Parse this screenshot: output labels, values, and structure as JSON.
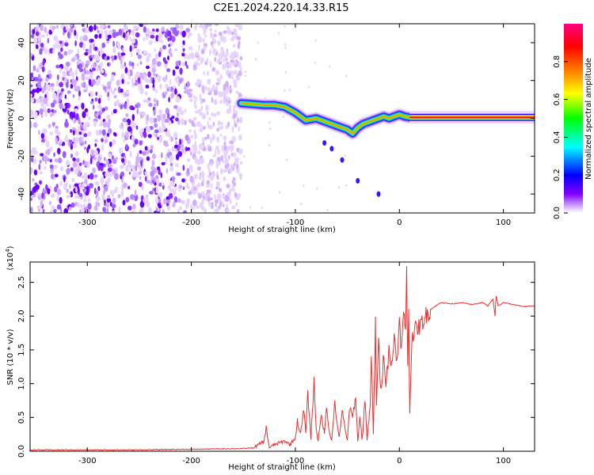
{
  "title": "C2E1.2024.220.14.33.R15",
  "chart_data": [
    {
      "type": "heatmap",
      "xlabel": "Height of straight line (km)",
      "ylabel": "Frequency (Hz)",
      "xlim": [
        -355,
        130
      ],
      "ylim": [
        -50,
        50
      ],
      "xticks": [
        -300,
        -200,
        -100,
        0,
        100
      ],
      "yticks": [
        -40,
        -20,
        0,
        20,
        40
      ],
      "colorbar": {
        "label": "Normalized spectral amplitude",
        "range": [
          0,
          1
        ],
        "ticks": [
          "0.0",
          "0.2",
          "0.4",
          "0.6",
          "0.8"
        ],
        "colors": [
          "#ffffff",
          "#d6b0ff",
          "#7a00ff",
          "#0000ff",
          "#00ffff",
          "#00ff00",
          "#ffff00",
          "#ff8000",
          "#ff0000",
          "#ff0080"
        ]
      },
      "noise_region_x": [
        -355,
        -152
      ],
      "ridge": {
        "x": [
          -152,
          -140,
          -130,
          -120,
          -110,
          -100,
          -90,
          -80,
          -70,
          -60,
          -50,
          -45,
          -40,
          -35,
          -30,
          -25,
          -20,
          -15,
          -10,
          -5,
          0,
          5,
          10,
          130
        ],
        "y": [
          8,
          7.5,
          7,
          7,
          6,
          3,
          -1,
          0,
          -2,
          -4,
          -6,
          -8,
          -5,
          -3,
          -2,
          -1,
          0,
          1,
          0,
          1,
          2,
          1,
          0.5,
          0.5
        ]
      }
    },
    {
      "type": "line",
      "xlabel": "Height of straight line (km)",
      "ylabel": "SNR (10 * v/v)",
      "y_multiplier": "(x10^4)",
      "xlim": [
        -355,
        130
      ],
      "ylim": [
        0,
        2.8
      ],
      "xticks": [
        -300,
        -200,
        -100,
        0,
        100
      ],
      "yticks": [
        "0.0",
        "0.5",
        "1.0",
        "1.5",
        "2.0",
        "2.5"
      ],
      "color": "#e83030",
      "series": [
        {
          "x": [
            -355,
            -300,
            -250,
            -200,
            -150,
            -140,
            -135,
            -130,
            -128,
            -125,
            -120,
            -110,
            -105,
            -100,
            -98,
            -95,
            -92,
            -90,
            -88,
            -85,
            -82,
            -80,
            -78,
            -75,
            -72,
            -70,
            -68,
            -65,
            -62,
            -60,
            -58,
            -55,
            -52,
            -50,
            -48,
            -45,
            -42,
            -40,
            -38,
            -36,
            -35,
            -33,
            -31,
            -30,
            -28,
            -27,
            -25,
            -23,
            -22,
            -20,
            -18,
            -16,
            -15,
            -13,
            -11,
            -10,
            -8,
            -6,
            -5,
            -3,
            -1,
            0,
            2,
            4,
            6,
            7,
            8,
            9,
            10,
            12,
            15,
            20,
            25,
            30,
            35,
            40,
            50,
            60,
            70,
            80,
            85,
            90,
            92,
            93,
            95,
            100,
            110,
            120,
            130
          ],
          "y": [
            0.02,
            0.02,
            0.02,
            0.03,
            0.04,
            0.05,
            0.1,
            0.15,
            0.35,
            0.05,
            0.1,
            0.15,
            0.1,
            0.2,
            0.45,
            0.25,
            0.6,
            0.3,
            0.85,
            0.2,
            1.05,
            0.35,
            0.15,
            0.55,
            0.25,
            0.7,
            0.35,
            0.15,
            0.75,
            0.4,
            0.2,
            0.6,
            0.3,
            0.15,
            0.65,
            0.5,
            0.8,
            0.15,
            0.5,
            0.2,
            0.3,
            0.8,
            0.15,
            0.35,
            0.65,
            1.45,
            0.25,
            1.9,
            0.7,
            1.6,
            0.9,
            1.2,
            1.5,
            1.0,
            1.3,
            1.6,
            1.2,
            1.45,
            1.75,
            1.4,
            1.6,
            1.9,
            1.5,
            2.0,
            1.8,
            2.78,
            1.3,
            2.0,
            0.55,
            1.7,
            1.8,
            1.85,
            2.0,
            2.1,
            2.15,
            2.2,
            2.18,
            2.2,
            2.17,
            2.2,
            2.15,
            2.25,
            2.0,
            2.3,
            2.15,
            2.2,
            2.17,
            2.14,
            2.15
          ]
        }
      ]
    }
  ]
}
